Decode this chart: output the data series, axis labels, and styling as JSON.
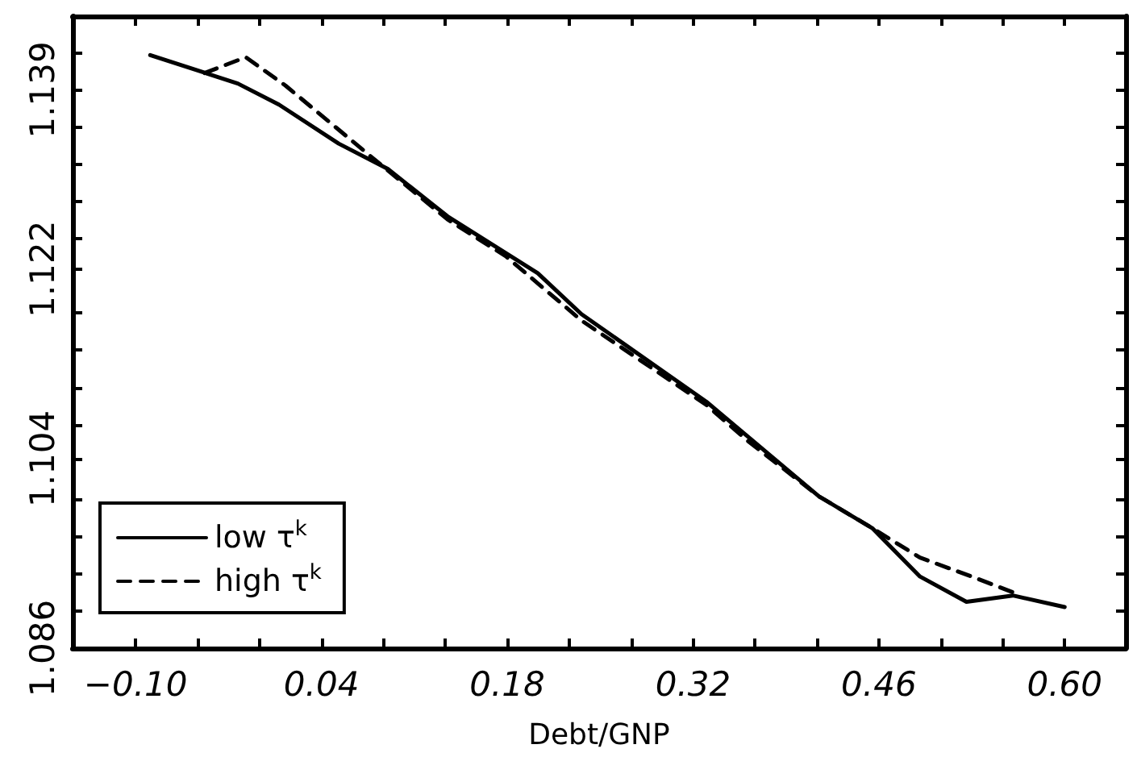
{
  "chart_data": {
    "type": "line",
    "xlabel": "Debt/GNP",
    "marker": "none",
    "legend": "bottom left",
    "xlim": [
      -0.1475,
      0.646
    ],
    "xticks": [
      {
        "value": -0.1,
        "label": "−0.10"
      },
      {
        "value": -0.0533,
        "label": null
      },
      {
        "value": -0.0067,
        "label": null
      },
      0.04,
      {
        "value": 0.0867,
        "label": null
      },
      {
        "value": 0.1333,
        "label": null
      },
      0.18,
      {
        "value": 0.2267,
        "label": null
      },
      {
        "value": 0.2733,
        "label": null
      },
      0.32,
      {
        "value": 0.3667,
        "label": null
      },
      {
        "value": 0.4133,
        "label": null
      },
      0.46,
      {
        "value": 0.5067,
        "label": null
      },
      {
        "value": 0.5533,
        "label": null
      },
      {
        "value": 0.6,
        "label": "0.60"
      }
    ],
    "ylim": [
      1.086,
      1.146
    ],
    "yticks": [
      1.086,
      {
        "value": 1.0895,
        "label": null
      },
      {
        "value": 1.0931,
        "label": null
      },
      {
        "value": 1.0966,
        "label": null
      },
      {
        "value": 1.1001,
        "label": null
      },
      1.104,
      {
        "value": 1.1072,
        "label": null
      },
      {
        "value": 1.1107,
        "label": null
      },
      {
        "value": 1.1143,
        "label": null
      },
      {
        "value": 1.1178,
        "label": null
      },
      1.122,
      {
        "value": 1.1249,
        "label": null
      },
      {
        "value": 1.1284,
        "label": null
      },
      {
        "value": 1.1319,
        "label": null
      },
      {
        "value": 1.1355,
        "label": null
      },
      1.139,
      {
        "value": 1.1425,
        "label": null
      }
    ],
    "series": [
      {
        "name": "low τ$^{k}$",
        "color": "#000000",
        "line_style": "solid",
        "x": [
          -0.089,
          -0.023,
          0.008,
          0.053,
          0.09,
          0.135,
          0.203,
          0.236,
          0.33,
          0.415,
          0.455,
          0.491,
          0.526,
          0.561,
          0.6
        ],
        "values": [
          1.1423,
          1.1396,
          1.1376,
          1.1339,
          1.1315,
          1.127,
          1.1216,
          1.1177,
          1.1094,
          1.1004,
          1.0974,
          1.0928,
          1.0904,
          1.091,
          1.0899
        ]
      },
      {
        "name": "high τ$^{k}$",
        "color": "#000000",
        "line_style": "dashed",
        "x": [
          -0.048,
          -0.017,
          0.013,
          0.078,
          0.135,
          0.179,
          0.236,
          0.33,
          0.361,
          0.415,
          0.455,
          0.491,
          0.532,
          0.561
        ],
        "values": [
          1.1406,
          1.1421,
          1.1394,
          1.1326,
          1.1267,
          1.1232,
          1.1171,
          1.1091,
          1.1057,
          1.1004,
          1.0974,
          1.0946,
          1.0927,
          1.0913
        ]
      }
    ]
  }
}
